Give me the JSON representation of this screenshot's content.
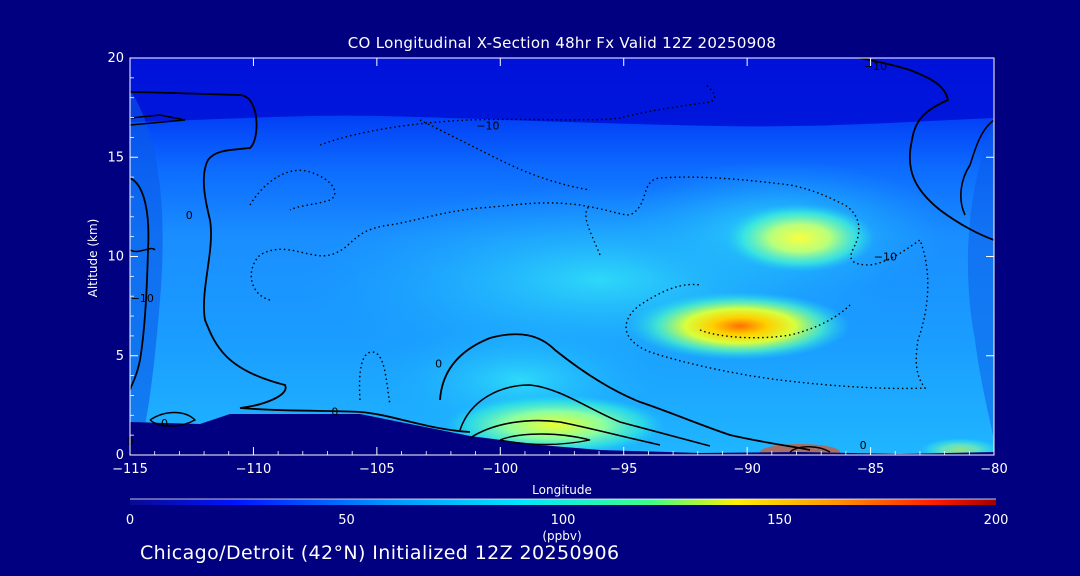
{
  "chart_data": {
    "type": "heatmap",
    "title": "CO Longitudinal X-Section 48hr  Fx Valid 12Z 20250908",
    "subtitle": "Chicago/Detroit (42°N) Initialized 12Z 20250906",
    "xlabel": "Longitude",
    "ylabel": "Altitude (km)",
    "xlim": [
      -115,
      -80
    ],
    "ylim": [
      0,
      20
    ],
    "x_ticks": [
      -115,
      -110,
      -105,
      -100,
      -95,
      -90,
      -85,
      -80
    ],
    "x_tick_labels": [
      "−115",
      "−110",
      "−105",
      "−100",
      "−95",
      "−90",
      "−85",
      "−80"
    ],
    "y_ticks": [
      0,
      5,
      10,
      15,
      20
    ],
    "y_tick_labels": [
      "0",
      "5",
      "10",
      "15",
      "20"
    ],
    "colorbar": {
      "label": "(ppbv)",
      "range": [
        0,
        200
      ],
      "ticks": [
        0,
        50,
        100,
        150,
        200
      ],
      "tick_labels": [
        "0",
        "50",
        "100",
        "150",
        "200"
      ]
    },
    "contour_labels": [
      {
        "text": "−10",
        "lon": -100.5,
        "alt": 16.6
      },
      {
        "text": "−10",
        "lon": -84.4,
        "alt": 10.0
      },
      {
        "text": "−10",
        "lon": -114.5,
        "alt": 7.9
      },
      {
        "text": "0",
        "lon": -112.6,
        "alt": 12.1
      },
      {
        "text": "0",
        "lon": -102.5,
        "alt": 4.6
      },
      {
        "text": "0",
        "lon": -106.7,
        "alt": 2.2
      },
      {
        "text": "0",
        "lon": -113.6,
        "alt": 1.6
      },
      {
        "text": "0",
        "lon": -85.3,
        "alt": 0.5
      },
      {
        "text": "0",
        "lon": -115.0,
        "alt": 0.7
      },
      {
        "text": "−10",
        "lon": -84.8,
        "alt": 19.6
      }
    ],
    "co_features": [
      {
        "lon": -88.5,
        "alt": 6.5,
        "value": 150
      },
      {
        "lon": -87.5,
        "alt": 10.8,
        "value": 118
      },
      {
        "lon": -98,
        "alt": 1.5,
        "value": 108
      }
    ]
  }
}
